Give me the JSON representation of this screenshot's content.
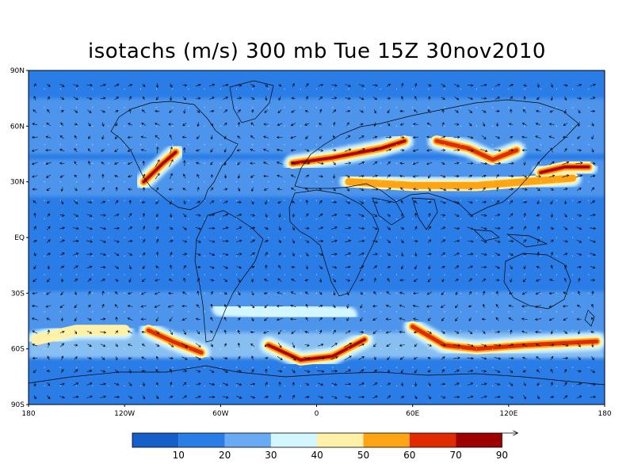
{
  "title": "isotachs (m/s) 300 mb Tue 15Z 30nov2010",
  "colors": {
    "bands": [
      "#1460c8",
      "#2a7ce6",
      "#6aaaf2",
      "#d4f6ff",
      "#fff2a8",
      "#ffa414",
      "#e02a00",
      "#9e0000"
    ],
    "coast": "#000000",
    "arrow": "#000000",
    "background": "#ffffff"
  },
  "chart_data": {
    "type": "heatmap",
    "title": "isotachs (m/s) 300 mb Tue 15Z 30nov2010",
    "x_ticks": [
      "180",
      "120W",
      "60W",
      "0",
      "60E",
      "120E",
      "180"
    ],
    "y_ticks": [
      "90N",
      "60N",
      "30N",
      "EQ",
      "30S",
      "60S",
      "90S"
    ],
    "xlim": [
      -180,
      180
    ],
    "ylim": [
      -90,
      90
    ],
    "colorbar": {
      "levels": [
        10,
        20,
        30,
        40,
        50,
        60,
        70
      ],
      "labels": [
        "10",
        "20",
        "30",
        "40",
        "50",
        "60",
        "70",
        "90"
      ],
      "units": "m/s"
    },
    "jets": [
      {
        "lon": [
          -108,
          -96,
          -88
        ],
        "lat": [
          30,
          40,
          46
        ],
        "speed": 72
      },
      {
        "lon": [
          -15,
          10,
          40,
          55
        ],
        "lat": [
          40,
          43,
          48,
          52
        ],
        "speed": 72
      },
      {
        "lon": [
          75,
          95,
          110,
          125
        ],
        "lat": [
          52,
          48,
          42,
          47
        ],
        "speed": 60
      },
      {
        "lon": [
          140,
          155,
          170
        ],
        "lat": [
          35,
          38,
          38
        ],
        "speed": 72
      },
      {
        "lon": [
          20,
          60,
          100,
          160
        ],
        "lat": [
          30,
          28,
          28,
          32
        ],
        "speed": 50
      },
      {
        "lon": [
          -105,
          -90,
          -72
        ],
        "lat": [
          -50,
          -56,
          -62
        ],
        "speed": 65
      },
      {
        "lon": [
          -30,
          -10,
          10,
          30
        ],
        "lat": [
          -58,
          -66,
          -64,
          -55
        ],
        "speed": 70
      },
      {
        "lon": [
          60,
          80,
          100,
          130,
          175
        ],
        "lat": [
          -48,
          -58,
          -60,
          -58,
          -56
        ],
        "speed": 60
      },
      {
        "lon": [
          -175,
          -150,
          -120
        ],
        "lat": [
          -55,
          -50,
          -50
        ],
        "speed": 45
      },
      {
        "lon": [
          -60,
          -20,
          20
        ],
        "lat": [
          -38,
          -40,
          -42
        ],
        "speed": 35
      }
    ]
  }
}
